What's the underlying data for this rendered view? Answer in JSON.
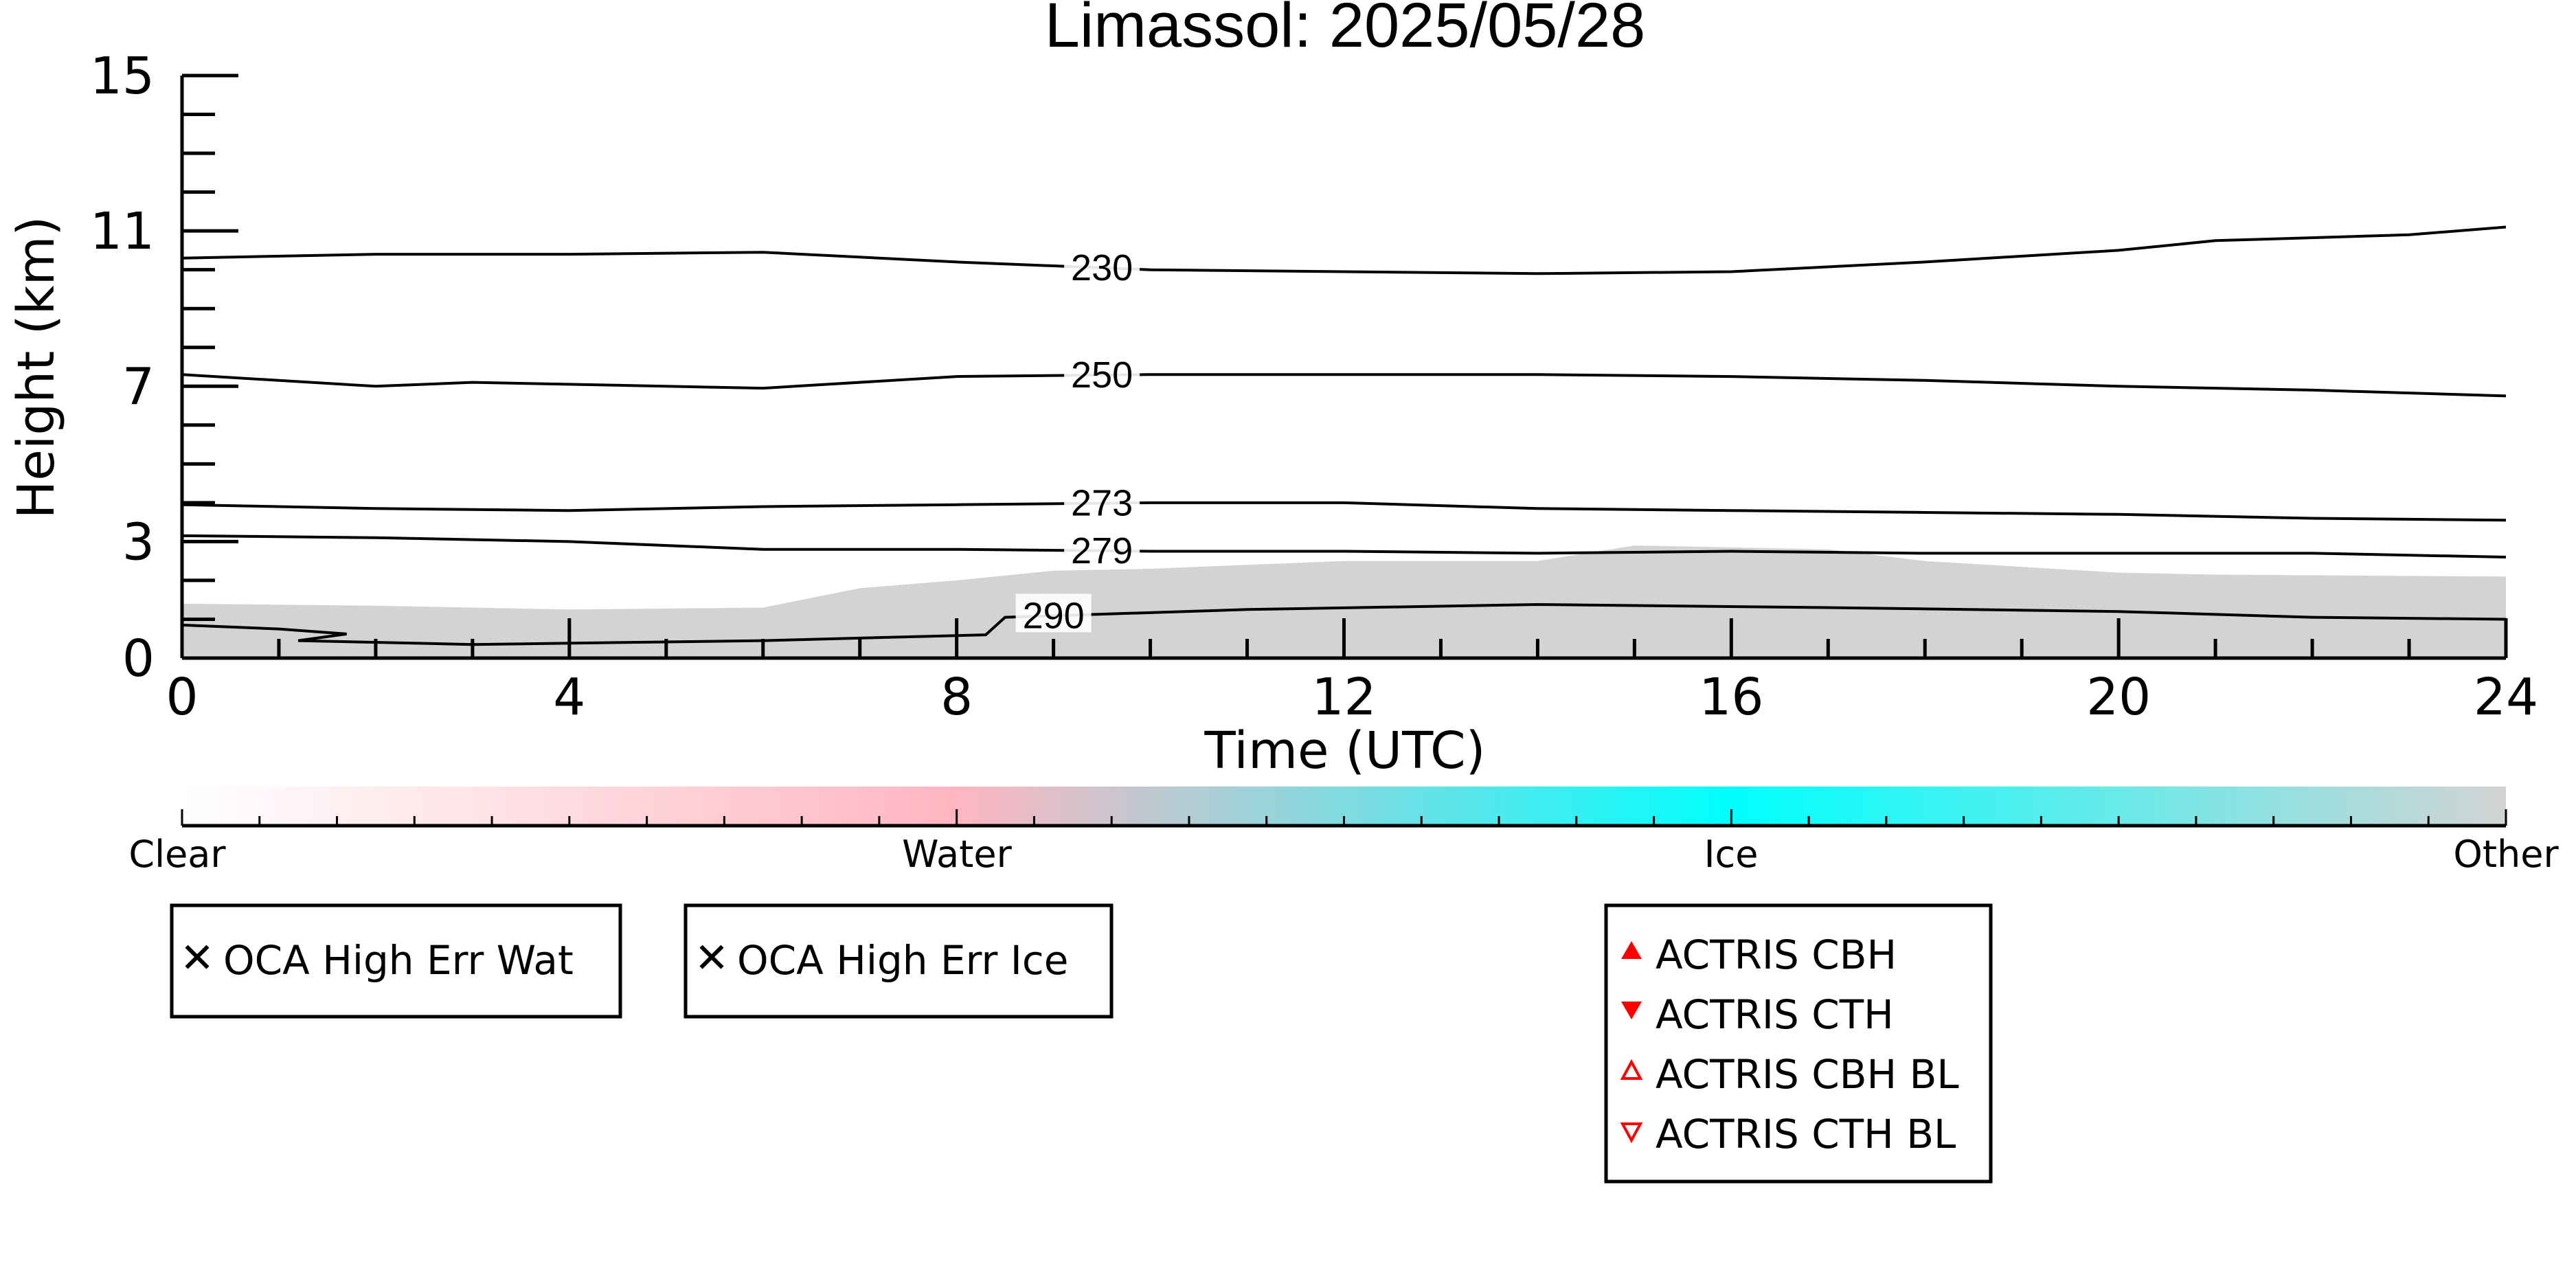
{
  "chart_data": {
    "type": "area",
    "title": "Limassol: 2025/05/28",
    "xlabel": "Time (UTC)",
    "ylabel": "Height (km)",
    "xlim": [
      0,
      24
    ],
    "ylim": [
      0,
      15
    ],
    "x_ticks": [
      "0",
      "4",
      "8",
      "12",
      "16",
      "20",
      "24"
    ],
    "y_ticks": [
      "0",
      "3",
      "7",
      "11",
      "15"
    ],
    "grid": false,
    "cloud_mask": {
      "class": "Other",
      "color": "#d3d3d3",
      "top_km": [
        {
          "x": 0,
          "y": 1.4
        },
        {
          "x": 2,
          "y": 1.35
        },
        {
          "x": 4,
          "y": 1.25
        },
        {
          "x": 6,
          "y": 1.3
        },
        {
          "x": 7,
          "y": 1.8
        },
        {
          "x": 8,
          "y": 2.0
        },
        {
          "x": 9,
          "y": 2.25
        },
        {
          "x": 10,
          "y": 2.3
        },
        {
          "x": 11,
          "y": 2.4
        },
        {
          "x": 12,
          "y": 2.5
        },
        {
          "x": 14,
          "y": 2.5
        },
        {
          "x": 15,
          "y": 2.9
        },
        {
          "x": 17,
          "y": 2.8
        },
        {
          "x": 18,
          "y": 2.5
        },
        {
          "x": 20,
          "y": 2.2
        },
        {
          "x": 21,
          "y": 2.15
        },
        {
          "x": 24,
          "y": 2.1
        }
      ]
    },
    "contours": [
      {
        "label": "230",
        "label_x": 9.5,
        "points": [
          {
            "x": 0,
            "y": 10.3
          },
          {
            "x": 2,
            "y": 10.4
          },
          {
            "x": 4,
            "y": 10.4
          },
          {
            "x": 6,
            "y": 10.45
          },
          {
            "x": 8,
            "y": 10.2
          },
          {
            "x": 10,
            "y": 10.0
          },
          {
            "x": 12,
            "y": 9.95
          },
          {
            "x": 14,
            "y": 9.9
          },
          {
            "x": 16,
            "y": 9.95
          },
          {
            "x": 18,
            "y": 10.2
          },
          {
            "x": 20,
            "y": 10.5
          },
          {
            "x": 21,
            "y": 10.75
          },
          {
            "x": 23,
            "y": 10.9
          },
          {
            "x": 24,
            "y": 11.1
          }
        ]
      },
      {
        "label": "250",
        "label_x": 9.5,
        "points": [
          {
            "x": 0,
            "y": 7.3
          },
          {
            "x": 2,
            "y": 7.0
          },
          {
            "x": 3,
            "y": 7.1
          },
          {
            "x": 6,
            "y": 6.95
          },
          {
            "x": 8,
            "y": 7.25
          },
          {
            "x": 10,
            "y": 7.3
          },
          {
            "x": 12,
            "y": 7.3
          },
          {
            "x": 14,
            "y": 7.3
          },
          {
            "x": 16,
            "y": 7.25
          },
          {
            "x": 18,
            "y": 7.15
          },
          {
            "x": 20,
            "y": 7.0
          },
          {
            "x": 22,
            "y": 6.9
          },
          {
            "x": 24,
            "y": 6.75
          }
        ]
      },
      {
        "label": "273",
        "label_x": 9.5,
        "points": [
          {
            "x": 0,
            "y": 3.95
          },
          {
            "x": 2,
            "y": 3.85
          },
          {
            "x": 4,
            "y": 3.8
          },
          {
            "x": 6,
            "y": 3.9
          },
          {
            "x": 8,
            "y": 3.95
          },
          {
            "x": 10,
            "y": 4.0
          },
          {
            "x": 12,
            "y": 4.0
          },
          {
            "x": 14,
            "y": 3.85
          },
          {
            "x": 16,
            "y": 3.8
          },
          {
            "x": 18,
            "y": 3.75
          },
          {
            "x": 20,
            "y": 3.7
          },
          {
            "x": 22,
            "y": 3.6
          },
          {
            "x": 24,
            "y": 3.55
          }
        ]
      },
      {
        "label": "279",
        "label_x": 9.5,
        "points": [
          {
            "x": 0,
            "y": 3.15
          },
          {
            "x": 2,
            "y": 3.1
          },
          {
            "x": 4,
            "y": 3.0
          },
          {
            "x": 6,
            "y": 2.8
          },
          {
            "x": 8,
            "y": 2.8
          },
          {
            "x": 10,
            "y": 2.75
          },
          {
            "x": 12,
            "y": 2.75
          },
          {
            "x": 14,
            "y": 2.7
          },
          {
            "x": 16,
            "y": 2.75
          },
          {
            "x": 18,
            "y": 2.7
          },
          {
            "x": 20,
            "y": 2.7
          },
          {
            "x": 22,
            "y": 2.7
          },
          {
            "x": 24,
            "y": 2.6
          }
        ]
      },
      {
        "label": "290",
        "label_x": 9.0,
        "points": [
          {
            "x": 0,
            "y": 0.85
          },
          {
            "x": 1,
            "y": 0.75
          },
          {
            "x": 1.7,
            "y": 0.62
          },
          {
            "x": 1.2,
            "y": 0.45
          },
          {
            "x": 3,
            "y": 0.35
          },
          {
            "x": 6,
            "y": 0.45
          },
          {
            "x": 8.3,
            "y": 0.6
          },
          {
            "x": 8.5,
            "y": 1.05
          },
          {
            "x": 11,
            "y": 1.25
          },
          {
            "x": 14,
            "y": 1.38
          },
          {
            "x": 17,
            "y": 1.3
          },
          {
            "x": 20,
            "y": 1.2
          },
          {
            "x": 22,
            "y": 1.05
          },
          {
            "x": 24,
            "y": 1.0
          }
        ]
      }
    ],
    "colorbar": {
      "labels": [
        "Clear",
        "Water",
        "Ice",
        "Other"
      ],
      "colors": [
        "#ffffff",
        "#ffb6c1",
        "#00ffff",
        "#d3d3d3"
      ]
    },
    "legends": [
      {
        "items": [
          {
            "label": "OCA High Err Wat",
            "marker": "x",
            "color": "#2ca02c"
          }
        ]
      },
      {
        "items": [
          {
            "label": "OCA High Err Ice",
            "marker": "x",
            "color": "#0000ff"
          }
        ]
      },
      {
        "items": [
          {
            "label": "ACTRIS CBH",
            "marker": "triangle-up-filled",
            "color": "#ff0000"
          },
          {
            "label": "ACTRIS CTH",
            "marker": "triangle-down-filled",
            "color": "#ff0000"
          },
          {
            "label": "ACTRIS CBH BL",
            "marker": "triangle-up-open",
            "color": "#ff0000"
          },
          {
            "label": "ACTRIS CTH BL",
            "marker": "triangle-down-open",
            "color": "#ff0000"
          }
        ]
      }
    ]
  }
}
